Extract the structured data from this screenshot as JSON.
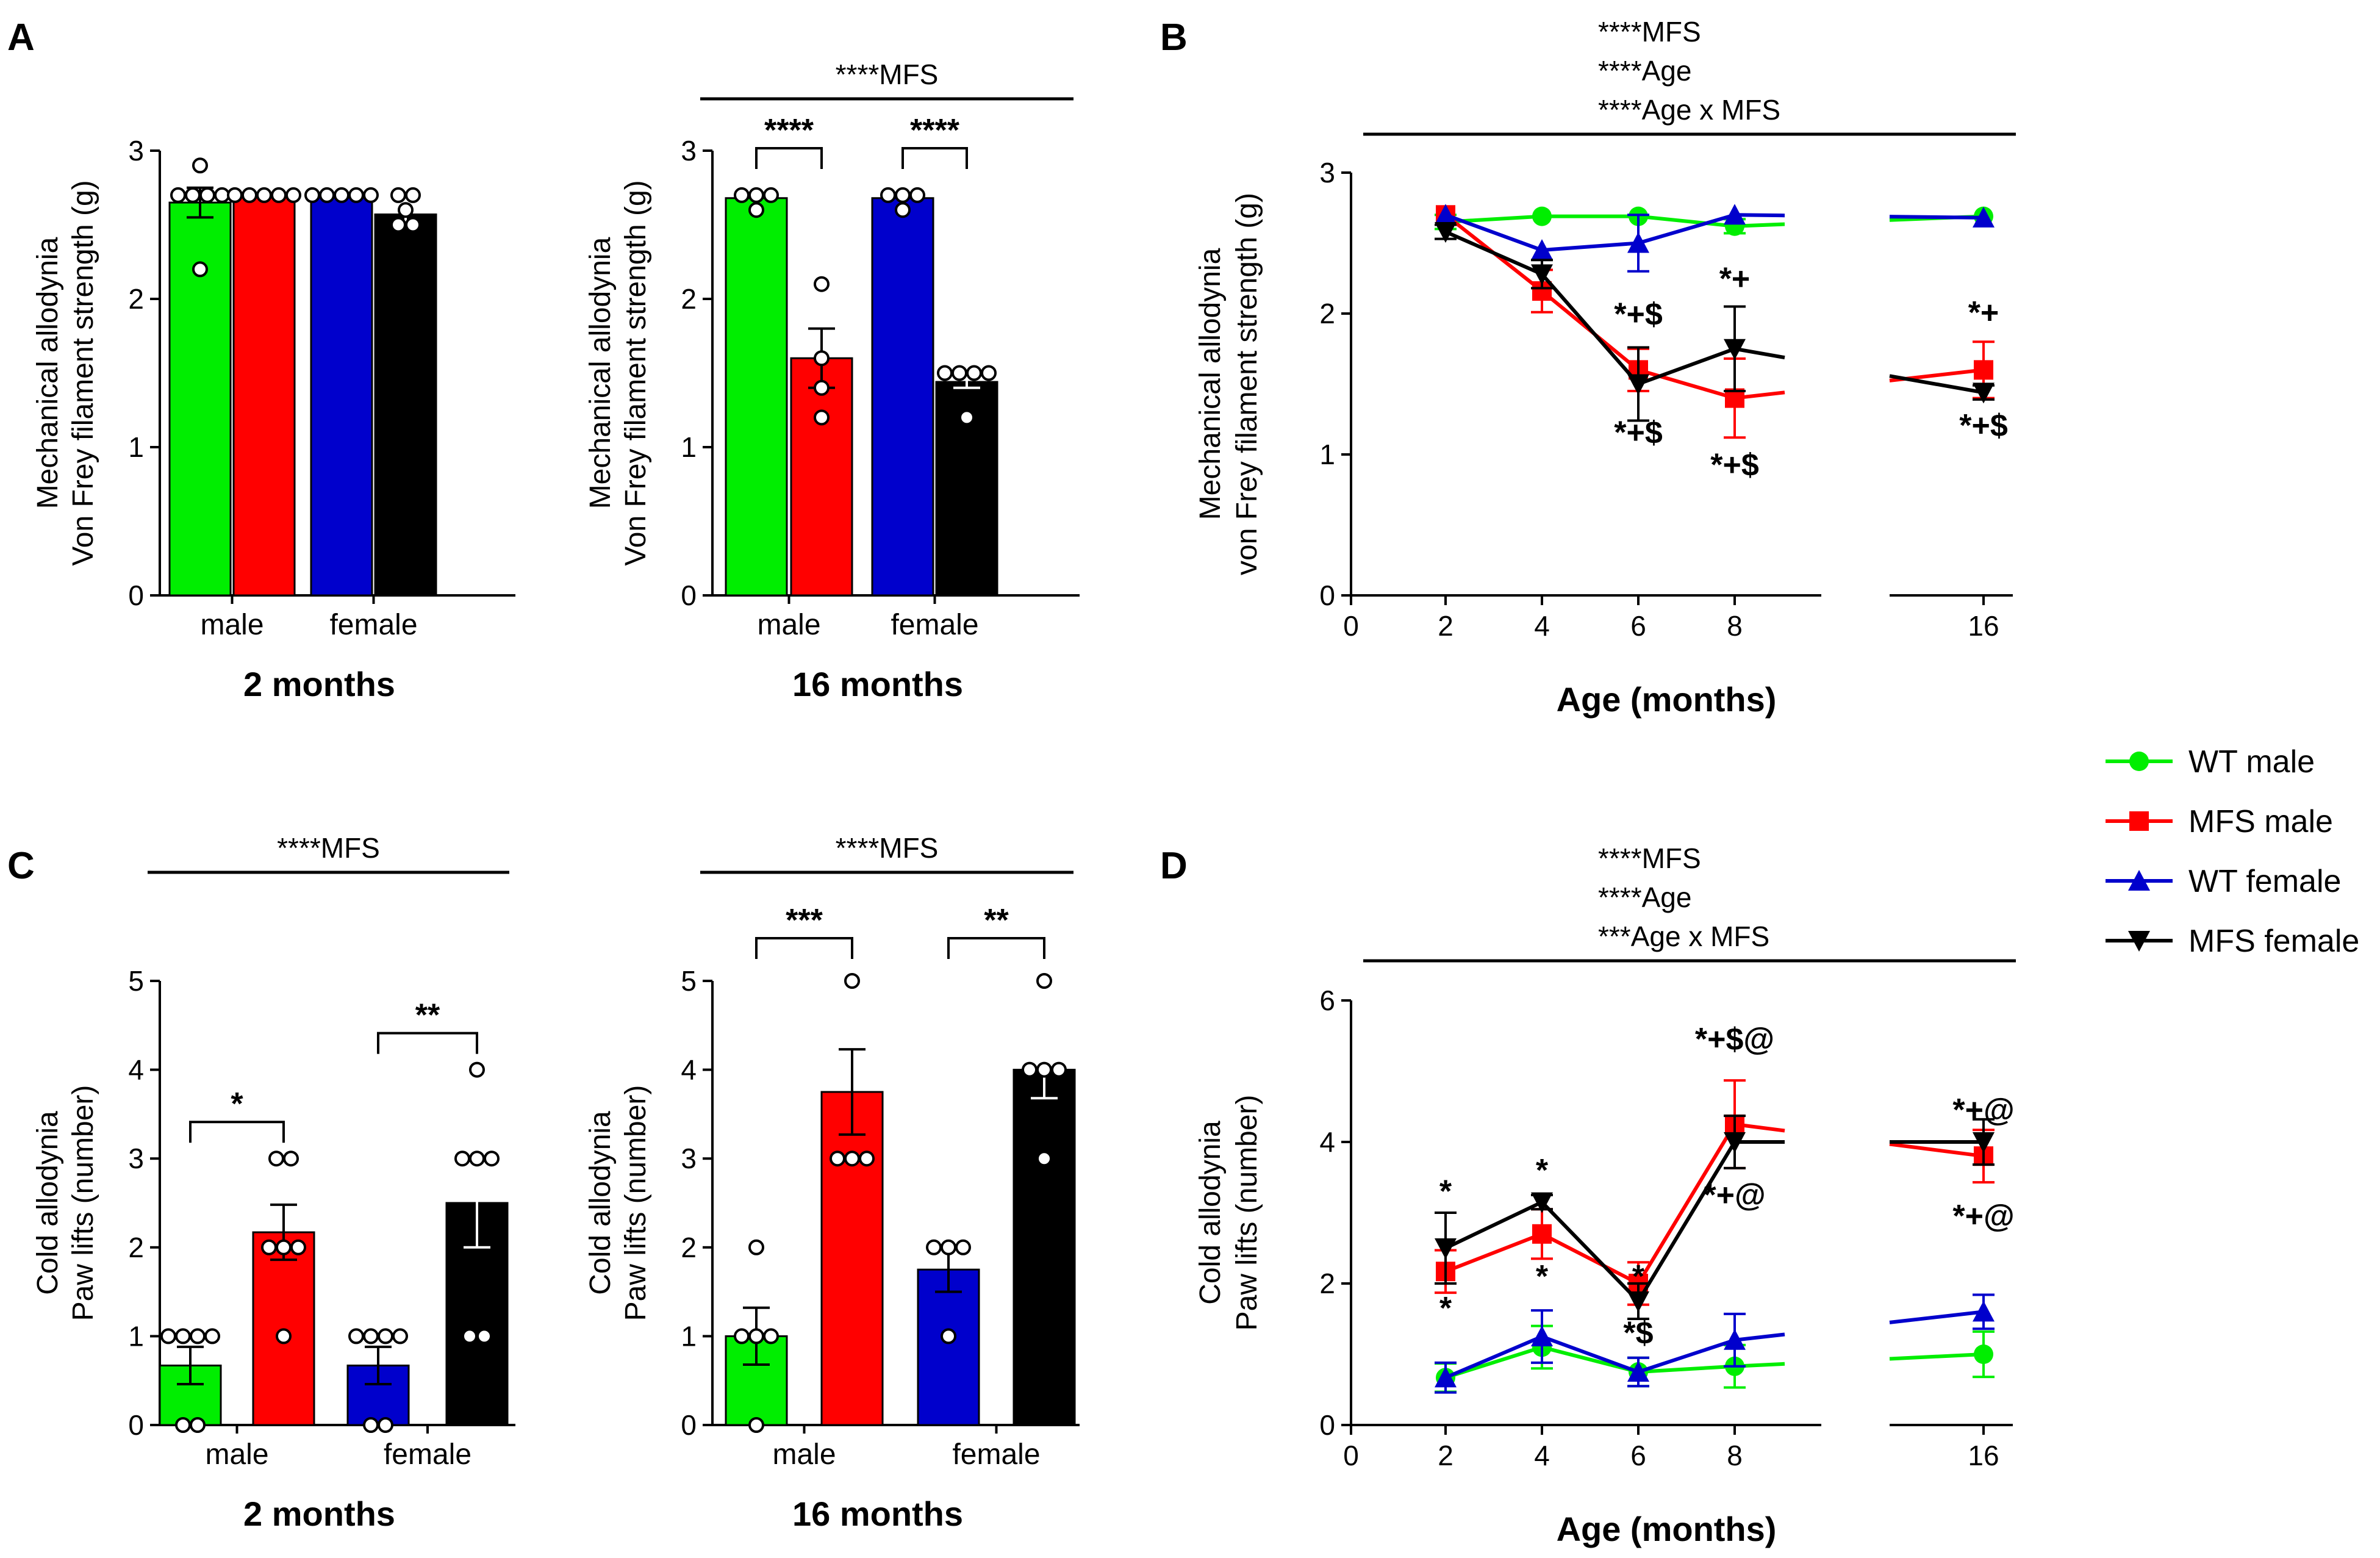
{
  "colors": {
    "wt_male": "#00ee00",
    "mfs_male": "#ff0000",
    "wt_female": "#0000cc",
    "mfs_female": "#000000"
  },
  "legend": [
    {
      "label": "WT male",
      "color": "#00ee00",
      "marker": "circle"
    },
    {
      "label": "MFS male",
      "color": "#ff0000",
      "marker": "square"
    },
    {
      "label": "WT female",
      "color": "#0000cc",
      "marker": "triangle-up"
    },
    {
      "label": "MFS female",
      "color": "#000000",
      "marker": "triangle-down"
    }
  ],
  "chart_data": [
    {
      "id": "A1",
      "panel_letter": "A",
      "type": "bar",
      "ylabel": [
        "Mechanical allodynia",
        "Von Frey filament strength (g)"
      ],
      "ylim": [
        0,
        3
      ],
      "yticks": [
        "0",
        "1",
        "2",
        "3"
      ],
      "groups": [
        "male",
        "female"
      ],
      "xlabel": "2 months",
      "header": [],
      "series": [
        {
          "name": "WT male",
          "color": "#00ee00",
          "value": 2.65,
          "sem": 0.1,
          "points": [
            2.9,
            2.7,
            2.7,
            2.7,
            2.7,
            2.2
          ]
        },
        {
          "name": "MFS male",
          "color": "#ff0000",
          "value": 2.7,
          "sem": 0,
          "points": [
            2.7,
            2.7,
            2.7,
            2.7,
            2.7
          ]
        },
        {
          "name": "WT female",
          "color": "#0000cc",
          "value": 2.7,
          "sem": 0,
          "points": [
            2.7,
            2.7,
            2.7,
            2.7,
            2.7
          ]
        },
        {
          "name": "MFS female",
          "color": "#000000",
          "value": 2.57,
          "sem": 0.05,
          "points": [
            2.7,
            2.7,
            2.6,
            2.5,
            2.5
          ]
        }
      ],
      "brackets": []
    },
    {
      "id": "A2",
      "type": "bar",
      "ylabel": [
        "Mechanical allodynia",
        "Von Frey filament strength (g)"
      ],
      "ylim": [
        0,
        3
      ],
      "yticks": [
        "0",
        "1",
        "2",
        "3"
      ],
      "groups": [
        "male",
        "female"
      ],
      "xlabel": "16 months",
      "header": [
        "****MFS"
      ],
      "series": [
        {
          "name": "WT male",
          "color": "#00ee00",
          "value": 2.68,
          "sem": 0,
          "points": [
            2.7,
            2.7,
            2.7,
            2.6
          ]
        },
        {
          "name": "MFS male",
          "color": "#ff0000",
          "value": 1.6,
          "sem": 0.2,
          "points": [
            2.1,
            1.6,
            1.4,
            1.2
          ]
        },
        {
          "name": "WT female",
          "color": "#0000cc",
          "value": 2.68,
          "sem": 0,
          "points": [
            2.7,
            2.7,
            2.7,
            2.6
          ]
        },
        {
          "name": "MFS female",
          "color": "#000000",
          "value": 1.44,
          "sem": 0.04,
          "points": [
            1.5,
            1.5,
            1.5,
            1.5,
            1.2
          ]
        }
      ],
      "brackets": [
        {
          "from": 0,
          "to": 1,
          "label": "****"
        },
        {
          "from": 2,
          "to": 3,
          "label": "****"
        }
      ]
    },
    {
      "id": "C1",
      "panel_letter": "C",
      "type": "bar",
      "ylabel": [
        "Cold allodynia",
        "Paw lifts (number)"
      ],
      "ylim": [
        0,
        5
      ],
      "yticks": [
        "0",
        "1",
        "2",
        "3",
        "4",
        "5"
      ],
      "groups": [
        "male",
        "female"
      ],
      "xlabel": "2 months",
      "header": [
        "****MFS"
      ],
      "series": [
        {
          "name": "WT male",
          "color": "#00ee00",
          "value": 0.67,
          "sem": 0.21,
          "points": [
            1,
            1,
            1,
            1,
            0,
            0
          ]
        },
        {
          "name": "MFS male",
          "color": "#ff0000",
          "value": 2.17,
          "sem": 0.31,
          "points": [
            3,
            3,
            2,
            2,
            2,
            1
          ]
        },
        {
          "name": "WT female",
          "color": "#0000cc",
          "value": 0.67,
          "sem": 0.21,
          "points": [
            1,
            1,
            1,
            1,
            0,
            0
          ]
        },
        {
          "name": "MFS female",
          "color": "#000000",
          "value": 2.5,
          "sem": 0.5,
          "points": [
            4,
            3,
            3,
            3,
            1,
            1
          ]
        }
      ],
      "brackets": [
        {
          "from": 0,
          "to": 1,
          "label": "*"
        },
        {
          "from": 2,
          "to": 3,
          "label": "**"
        }
      ]
    },
    {
      "id": "C2",
      "type": "bar",
      "ylabel": [
        "Cold allodynia",
        "Paw lifts (number)"
      ],
      "ylim": [
        0,
        5
      ],
      "yticks": [
        "0",
        "1",
        "2",
        "3",
        "4",
        "5"
      ],
      "groups": [
        "male",
        "female"
      ],
      "xlabel": "16 months",
      "header": [
        "****MFS"
      ],
      "series": [
        {
          "name": "WT male",
          "color": "#00ee00",
          "value": 1.0,
          "sem": 0.32,
          "points": [
            2,
            1,
            1,
            1,
            0
          ]
        },
        {
          "name": "MFS male",
          "color": "#ff0000",
          "value": 3.75,
          "sem": 0.48,
          "points": [
            5,
            3,
            3,
            3
          ]
        },
        {
          "name": "WT female",
          "color": "#0000cc",
          "value": 1.75,
          "sem": 0.25,
          "points": [
            2,
            2,
            2,
            1
          ]
        },
        {
          "name": "MFS female",
          "color": "#000000",
          "value": 4.0,
          "sem": 0.32,
          "points": [
            5,
            4,
            4,
            4,
            3
          ]
        }
      ],
      "brackets": [
        {
          "from": 0,
          "to": 1,
          "label": "***"
        },
        {
          "from": 2,
          "to": 3,
          "label": "**"
        }
      ]
    },
    {
      "id": "B",
      "panel_letter": "B",
      "type": "line",
      "ylabel": [
        "Mechanical allodynia",
        "von Frey filament strength (g)"
      ],
      "xlabel": "Age (months)",
      "header": [
        "****MFS",
        "****Age",
        "****Age x MFS"
      ],
      "ylim": [
        0,
        3
      ],
      "yticks": [
        "0",
        "1",
        "2",
        "3"
      ],
      "xticks": [
        "0",
        "2",
        "4",
        "6",
        "8",
        "16"
      ],
      "x": [
        2,
        4,
        6,
        8,
        16
      ],
      "series": [
        {
          "name": "WT male",
          "color": "#00ee00",
          "marker": "circle",
          "y": [
            2.65,
            2.69,
            2.69,
            2.62,
            2.69
          ],
          "sem": [
            0.05,
            0,
            0,
            0.05,
            0
          ]
        },
        {
          "name": "MFS male",
          "color": "#ff0000",
          "marker": "square",
          "y": [
            2.7,
            2.16,
            1.6,
            1.4,
            1.6
          ],
          "sem": [
            0,
            0.15,
            0.15,
            0.28,
            0.2
          ]
        },
        {
          "name": "WT female",
          "color": "#0000cc",
          "marker": "triangle-up",
          "y": [
            2.7,
            2.45,
            2.5,
            2.7,
            2.68
          ],
          "sem": [
            0,
            0,
            0.2,
            0,
            0
          ]
        },
        {
          "name": "MFS female",
          "color": "#000000",
          "marker": "triangle-down",
          "y": [
            2.58,
            2.28,
            1.5,
            1.75,
            1.44
          ],
          "sem": [
            0.05,
            0.1,
            0.26,
            0.3,
            0.05
          ]
        }
      ],
      "annotations": [
        {
          "x": 6,
          "y": 1.92,
          "text": "*+$"
        },
        {
          "x": 6,
          "y": 1.08,
          "text": "*+$"
        },
        {
          "x": 8,
          "y": 2.17,
          "text": "*+"
        },
        {
          "x": 8,
          "y": 0.85,
          "text": "*+$"
        },
        {
          "x": 16,
          "y": 1.93,
          "text": "*+"
        },
        {
          "x": 16,
          "y": 1.13,
          "text": "*+$"
        }
      ]
    },
    {
      "id": "D",
      "panel_letter": "D",
      "type": "line",
      "ylabel": [
        "Cold allodynia",
        "Paw lifts (number)"
      ],
      "xlabel": "Age (months)",
      "header": [
        "****MFS",
        "****Age",
        "***Age x MFS"
      ],
      "ylim": [
        0,
        6
      ],
      "yticks": [
        "0",
        "2",
        "4",
        "6"
      ],
      "xticks": [
        "0",
        "2",
        "4",
        "6",
        "8",
        "16"
      ],
      "x": [
        2,
        4,
        6,
        8,
        16
      ],
      "series": [
        {
          "name": "WT male",
          "color": "#00ee00",
          "marker": "circle",
          "y": [
            0.67,
            1.1,
            0.75,
            0.83,
            1.0
          ],
          "sem": [
            0.2,
            0.3,
            0.2,
            0.3,
            0.32
          ]
        },
        {
          "name": "MFS male",
          "color": "#ff0000",
          "marker": "square",
          "y": [
            2.17,
            2.7,
            2.0,
            4.25,
            3.8
          ],
          "sem": [
            0.3,
            0.35,
            0.3,
            0.62,
            0.37
          ]
        },
        {
          "name": "WT female",
          "color": "#0000cc",
          "marker": "triangle-up",
          "y": [
            0.67,
            1.25,
            0.75,
            1.2,
            1.6
          ],
          "sem": [
            0.21,
            0.37,
            0.2,
            0.37,
            0.24
          ]
        },
        {
          "name": "MFS female",
          "color": "#000000",
          "marker": "triangle-down",
          "y": [
            2.5,
            3.15,
            1.75,
            4.0,
            4.0
          ],
          "sem": [
            0.5,
            0.1,
            0.25,
            0.37,
            0.32
          ]
        }
      ],
      "annotations": [
        {
          "x": 2,
          "y": 3.15,
          "text": "*"
        },
        {
          "x": 2,
          "y": 1.5,
          "text": "*"
        },
        {
          "x": 4,
          "y": 3.45,
          "text": "*"
        },
        {
          "x": 4,
          "y": 1.95,
          "text": "*"
        },
        {
          "x": 6,
          "y": 1.95,
          "text": "*"
        },
        {
          "x": 6,
          "y": 1.15,
          "text": "*$"
        },
        {
          "x": 8,
          "y": 5.3,
          "text": "*+$@"
        },
        {
          "x": 8,
          "y": 3.1,
          "text": "*+@"
        },
        {
          "x": 16,
          "y": 4.3,
          "text": "*+@"
        },
        {
          "x": 16,
          "y": 2.8,
          "text": "*+@"
        }
      ]
    }
  ]
}
